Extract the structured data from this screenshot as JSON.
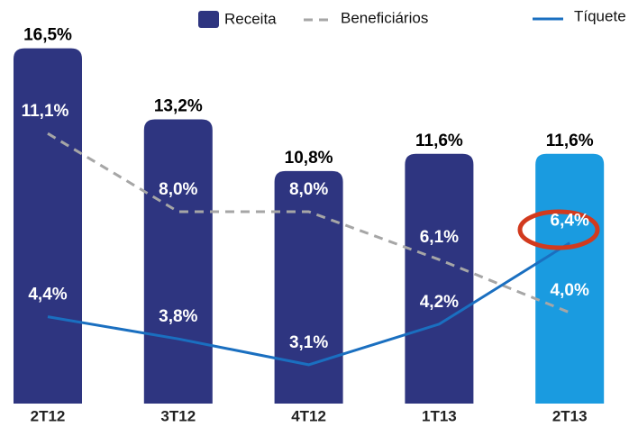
{
  "chart_data": {
    "type": "bar",
    "categories": [
      "2T12",
      "3T12",
      "4T12",
      "1T13",
      "2T13"
    ],
    "series": [
      {
        "name": "Receita",
        "color": "#2e3580",
        "colors": [
          "#2e3580",
          "#2e3580",
          "#2e3580",
          "#2e3580",
          "#1a9be0"
        ],
        "values": [
          16.5,
          13.2,
          10.8,
          11.6,
          11.6
        ],
        "value_labels": [
          "16,5%",
          "13,2%",
          "10,8%",
          "11,6%",
          "11,6%"
        ]
      },
      {
        "name": "Beneficiários",
        "type": "line",
        "dashed": true,
        "color": "#a6a6a6",
        "values": [
          11.1,
          8.0,
          8.0,
          6.1,
          4.0
        ],
        "value_labels": [
          "11,1%",
          "8,0%",
          "8,0%",
          "6,1%",
          "4,0%"
        ]
      },
      {
        "name": "Tíquete",
        "type": "line",
        "color": "#1a6fc0",
        "values": [
          4.4,
          3.8,
          3.1,
          4.2,
          6.4
        ],
        "value_labels": [
          "4,4%",
          "3,8%",
          "3,1%",
          "4,2%",
          "6,4%"
        ]
      }
    ]
  }
}
